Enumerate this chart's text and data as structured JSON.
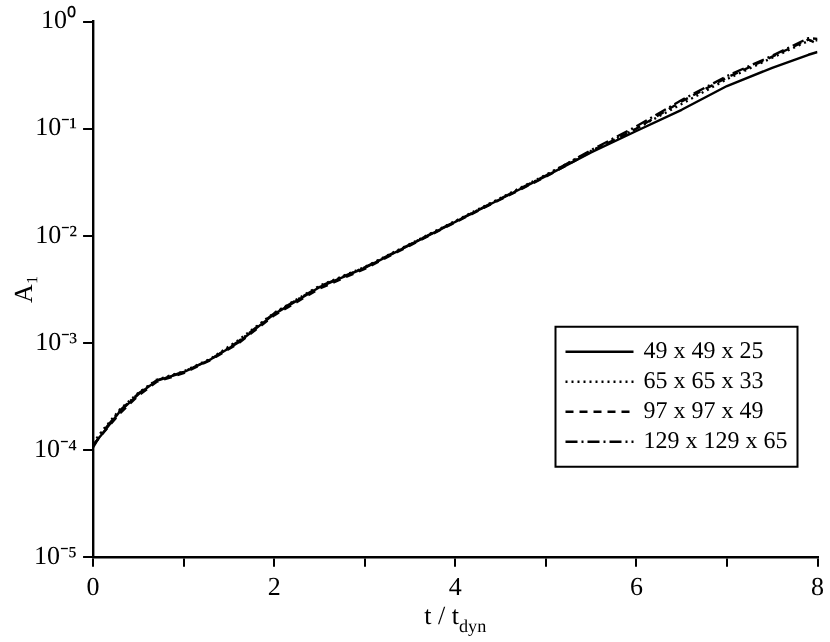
{
  "chart_data": {
    "type": "line",
    "xlabel": "t / t$_{dyn}$",
    "ylabel": "A₁",
    "log": "y",
    "legend": "bottom right",
    "grid": false,
    "marker": "none",
    "xlim": [
      0,
      8
    ],
    "xticks": [
      0,
      {
        "value": 1,
        "label": null
      },
      2,
      {
        "value": 3,
        "label": null
      },
      4,
      {
        "value": 5,
        "label": null
      },
      6,
      {
        "value": 7,
        "label": null
      },
      8
    ],
    "ylim": [
      1e-05,
      1
    ],
    "yticks": [
      {
        "value": 1e-05,
        "label": "10⁻⁵"
      },
      {
        "value": 0.0001,
        "label": "10⁻⁴"
      },
      {
        "value": 0.001,
        "label": "10⁻³"
      },
      {
        "value": 0.01,
        "label": "10⁻²"
      },
      {
        "value": 0.1,
        "label": "10⁻¹"
      },
      {
        "value": 1,
        "label": "10⁰"
      }
    ],
    "x": [
      0,
      0.1,
      0.3,
      0.5,
      0.7,
      1,
      1.3,
      1.6,
      2,
      2.5,
      3,
      3.7,
      4.5,
      5,
      5.5,
      6,
      6.5,
      7,
      7.5,
      7.9,
      8
    ],
    "series": [
      {
        "name": "49 x 49 x 25",
        "color": "#000000",
        "line_style": "solid",
        "values": [
          0.00011,
          0.00014,
          0.00023,
          0.00033,
          0.00044,
          0.00053,
          0.0007,
          0.001,
          0.00185,
          0.0033,
          0.005,
          0.01,
          0.022,
          0.036,
          0.06,
          0.095,
          0.15,
          0.25,
          0.37,
          0.49,
          0.52
        ]
      },
      {
        "name": "65 x 65 x 33",
        "color": "#000000",
        "line_style": "dotted",
        "values": [
          0.000115,
          0.00015,
          0.00024,
          0.00034,
          0.00045,
          0.00054,
          0.00071,
          0.00105,
          0.0019,
          0.0034,
          0.0051,
          0.0102,
          0.0225,
          0.037,
          0.062,
          0.1,
          0.17,
          0.29,
          0.46,
          0.66,
          0.67
        ]
      },
      {
        "name": "97 x 97 x 49",
        "color": "#000000",
        "line_style": "dashed",
        "values": [
          0.00011,
          0.00014,
          0.00022,
          0.00032,
          0.00043,
          0.00052,
          0.00069,
          0.00098,
          0.0018,
          0.0032,
          0.0049,
          0.0099,
          0.0218,
          0.0355,
          0.061,
          0.1,
          0.18,
          0.3,
          0.47,
          0.68,
          0.62
        ]
      },
      {
        "name": "129 x 129 x 65",
        "color": "#000000",
        "line_style": "dashdot",
        "values": [
          0.000105,
          0.000145,
          0.000235,
          0.000335,
          0.000445,
          0.000535,
          0.0007,
          0.00102,
          0.00188,
          0.00335,
          0.00505,
          0.0101,
          0.0222,
          0.0365,
          0.063,
          0.105,
          0.185,
          0.31,
          0.48,
          0.7,
          0.69
        ]
      }
    ]
  }
}
